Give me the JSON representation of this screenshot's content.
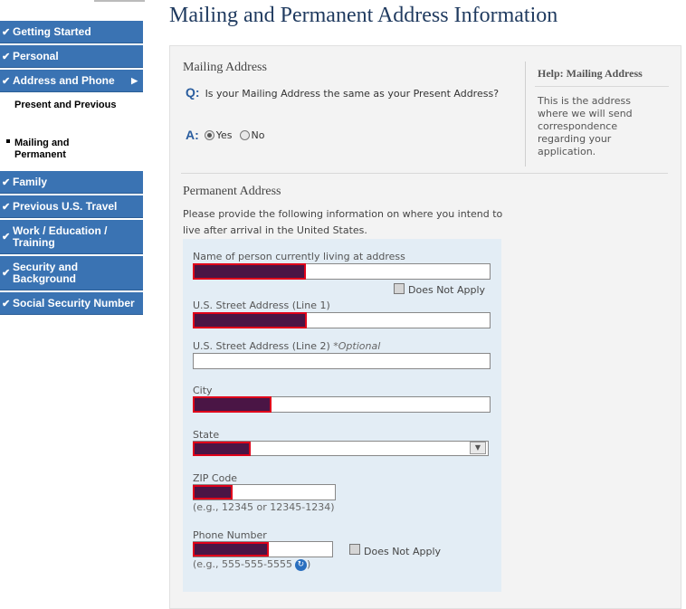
{
  "page": {
    "title": "Mailing and Permanent Address Information"
  },
  "sidebar": {
    "items": [
      {
        "label": "Getting Started",
        "check": "✔"
      },
      {
        "label": "Personal",
        "check": "✔"
      },
      {
        "label": "Address and Phone",
        "check": "✔",
        "arrow": "▶"
      },
      {
        "label": "Family",
        "check": "✔"
      },
      {
        "label": "Previous U.S. Travel",
        "check": "✔"
      },
      {
        "label": "Work / Education / Training",
        "check": "✔"
      },
      {
        "label": "Security and Background",
        "check": "✔"
      },
      {
        "label": "Social Security Number",
        "check": "✔"
      }
    ],
    "subitems": [
      {
        "label": "Present and Previous"
      },
      {
        "label": "Mailing and Permanent"
      }
    ]
  },
  "mailing": {
    "heading": "Mailing Address",
    "q_marker": "Q:",
    "question": "Is your Mailing Address the same as your Present Address?",
    "a_marker": "A:",
    "yes_label": "Yes",
    "no_label": "No",
    "selected": "Yes"
  },
  "help": {
    "title": "Help: Mailing Address",
    "text": "This is the address where we will send correspondence regarding your application."
  },
  "permanent": {
    "heading": "Permanent Address",
    "intro": "Please provide the following information on where you intend to live after arrival in the United States.",
    "name_label": "Name of person currently living at address",
    "does_not_apply": "Does Not Apply",
    "street1_label": "U.S. Street Address (Line 1)",
    "street2_label": "U.S. Street Address (Line 2)",
    "optional": "*Optional",
    "city_label": "City",
    "state_label": "State",
    "zip_label": "ZIP Code",
    "zip_hint": "(e.g., 12345 or 12345-1234)",
    "phone_label": "Phone Number",
    "phone_hint": "(e.g., 555-555-5555"
  },
  "colors": {
    "nav": "#3a73b3",
    "redaction_fill": "#4a1545",
    "redaction_border": "#e0001a",
    "title": "#1f3a5f"
  }
}
